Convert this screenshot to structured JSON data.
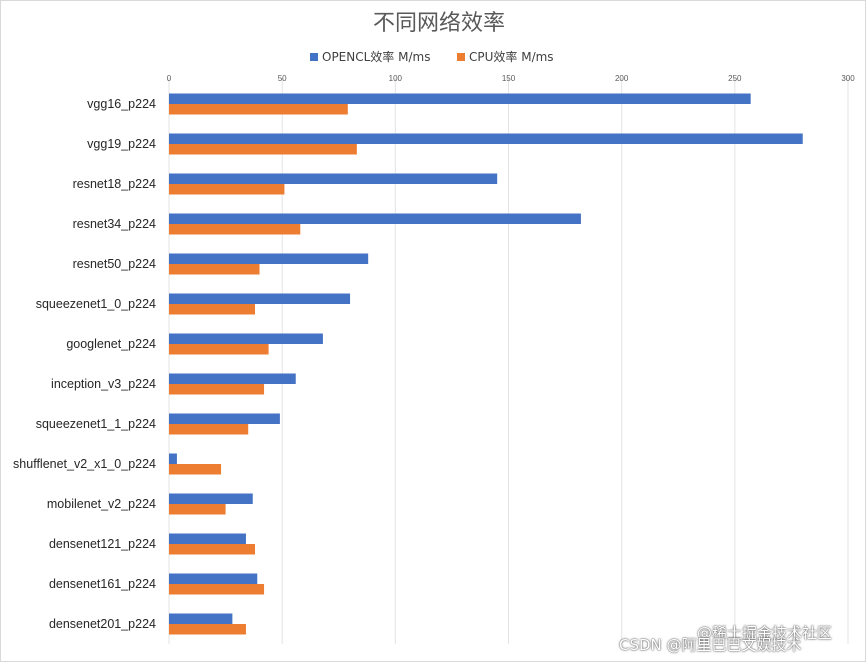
{
  "chart_data": {
    "type": "bar",
    "orientation": "horizontal",
    "title": "不同网络效率",
    "xlim": [
      0,
      300
    ],
    "xticks": [
      0,
      50,
      100,
      150,
      200,
      250,
      300
    ],
    "grid": true,
    "legend_position": "top",
    "categories": [
      "vgg16_p224",
      "vgg19_p224",
      "resnet18_p224",
      "resnet34_p224",
      "resnet50_p224",
      "squeezenet1_0_p224",
      "googlenet_p224",
      "inception_v3_p224",
      "squeezenet1_1_p224",
      "shufflenet_v2_x1_0_p224",
      "mobilenet_v2_p224",
      "densenet121_p224",
      "densenet161_p224",
      "densenet201_p224"
    ],
    "series": [
      {
        "name": "OPENCL效率 M/ms",
        "color": "#4472c4",
        "values": [
          257,
          280,
          145,
          182,
          88,
          80,
          68,
          56,
          49,
          3.5,
          37,
          34,
          39,
          28
        ]
      },
      {
        "name": "CPU效率 M/ms",
        "color": "#ed7d31",
        "values": [
          79,
          83,
          51,
          58,
          40,
          38,
          44,
          42,
          35,
          23,
          25,
          38,
          42,
          34
        ]
      }
    ]
  },
  "watermarks": {
    "csdn": "CSDN @阿里巴巴文娱技术",
    "juejin": "@稀土掘金技术社区"
  }
}
